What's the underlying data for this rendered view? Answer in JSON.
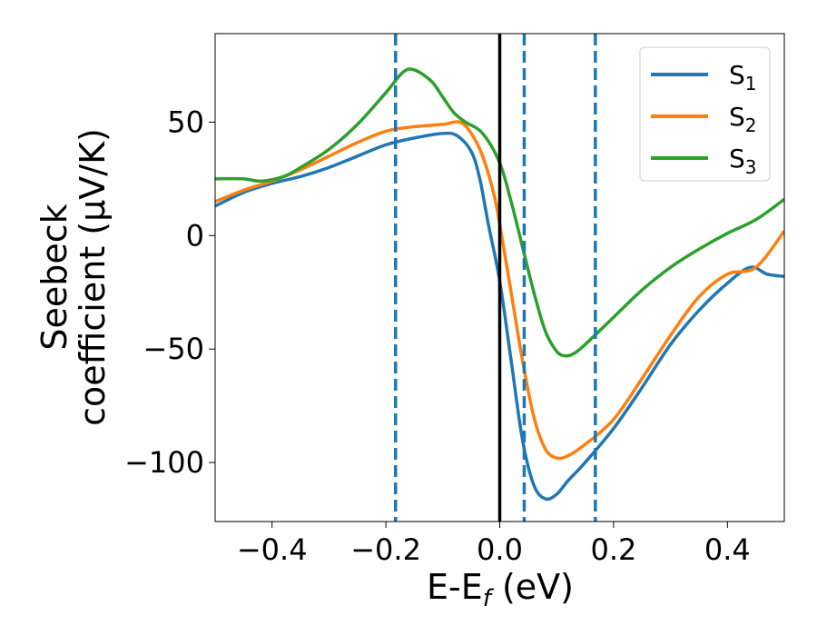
{
  "chart_data": {
    "type": "line",
    "xlabel": "E-E",
    "xlabel_sub": "f",
    "xlabel_unit": " (eV)",
    "ylabel_line1": "Seebeck",
    "ylabel_line2": "coefficient  (μV/K)",
    "xlim": [
      -0.5,
      0.5
    ],
    "ylim": [
      -126,
      89
    ],
    "xticks": [
      -0.4,
      -0.2,
      0.0,
      0.2,
      0.4
    ],
    "xtick_labels": [
      "−0.4",
      "−0.2",
      "0.0",
      "0.2",
      "0.4"
    ],
    "yticks": [
      50,
      0,
      -50,
      -100
    ],
    "ytick_labels": [
      "50",
      "0",
      "−50",
      "−100"
    ],
    "grid": false,
    "legend_position": "top-right",
    "vlines": [
      {
        "x": -0.183,
        "style": "dashed",
        "color": "#1f77b4"
      },
      {
        "x": 0.0,
        "style": "solid",
        "color": "#000000"
      },
      {
        "x": 0.043,
        "style": "dashed",
        "color": "#1f77b4"
      },
      {
        "x": 0.168,
        "style": "dashed",
        "color": "#1f77b4"
      }
    ],
    "series": [
      {
        "name": "S",
        "sub": "1",
        "color": "#1f77b4",
        "x": [
          -0.5,
          -0.45,
          -0.4,
          -0.35,
          -0.3,
          -0.25,
          -0.2,
          -0.15,
          -0.1,
          -0.075,
          -0.05,
          -0.035,
          -0.02,
          0.0,
          0.02,
          0.04,
          0.06,
          0.08,
          0.1,
          0.12,
          0.15,
          0.2,
          0.25,
          0.3,
          0.35,
          0.4,
          0.44,
          0.47,
          0.5
        ],
        "y": [
          13,
          19,
          23,
          26,
          30,
          35,
          40,
          43,
          45,
          44,
          37,
          25,
          5,
          -20,
          -55,
          -90,
          -110,
          -116,
          -114,
          -108,
          -100,
          -85,
          -67,
          -48,
          -33,
          -21,
          -14,
          -17,
          -18
        ]
      },
      {
        "name": "S",
        "sub": "2",
        "color": "#ff7f0e",
        "x": [
          -0.5,
          -0.45,
          -0.4,
          -0.35,
          -0.3,
          -0.25,
          -0.2,
          -0.15,
          -0.1,
          -0.07,
          -0.05,
          -0.03,
          -0.01,
          0.0,
          0.02,
          0.04,
          0.06,
          0.08,
          0.1,
          0.12,
          0.15,
          0.2,
          0.25,
          0.3,
          0.35,
          0.4,
          0.45,
          0.5
        ],
        "y": [
          15,
          20,
          24,
          29,
          35,
          41,
          46,
          48,
          49,
          50,
          45,
          35,
          18,
          5,
          -25,
          -55,
          -80,
          -94,
          -98,
          -97,
          -92,
          -81,
          -63,
          -44,
          -27,
          -17,
          -14,
          2
        ]
      },
      {
        "name": "S",
        "sub": "3",
        "color": "#2ca02c",
        "x": [
          -0.5,
          -0.45,
          -0.42,
          -0.38,
          -0.35,
          -0.3,
          -0.25,
          -0.2,
          -0.17,
          -0.15,
          -0.12,
          -0.1,
          -0.08,
          -0.06,
          -0.03,
          0.0,
          0.02,
          0.04,
          0.06,
          0.08,
          0.1,
          0.115,
          0.13,
          0.15,
          0.2,
          0.25,
          0.3,
          0.35,
          0.4,
          0.45,
          0.5
        ],
        "y": [
          25,
          25,
          24,
          26,
          30,
          38,
          49,
          63,
          72,
          73,
          68,
          61,
          54,
          50,
          45,
          32,
          15,
          -5,
          -25,
          -42,
          -51,
          -53,
          -52,
          -48,
          -36,
          -24,
          -14,
          -6,
          1,
          7,
          16
        ]
      }
    ]
  }
}
